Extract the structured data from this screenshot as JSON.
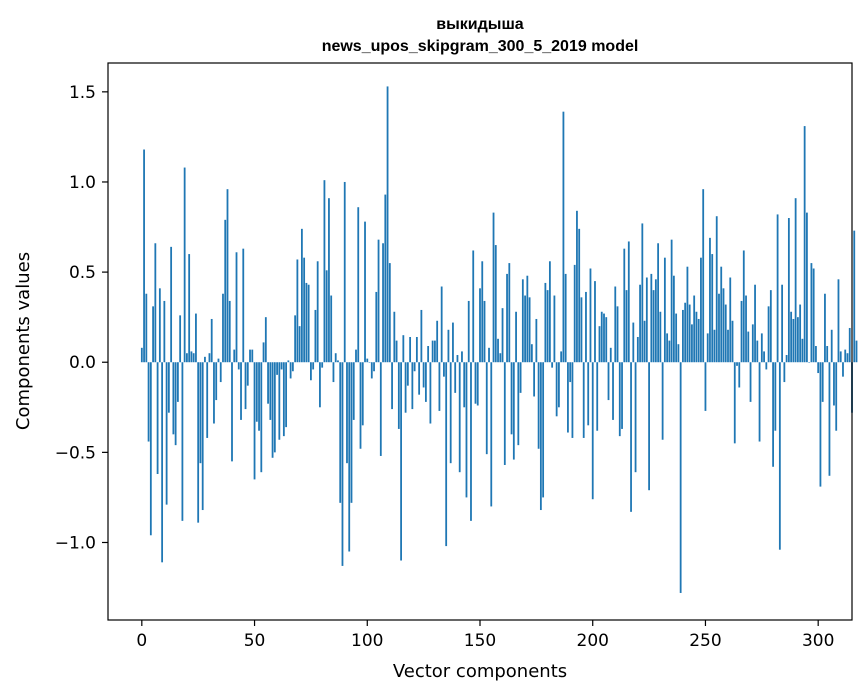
{
  "chart_data": {
    "type": "bar",
    "title": "выкидыша",
    "subtitle": "news_upos_skipgram_300_5_2019 model",
    "xlabel": "Vector components",
    "ylabel": "Components values",
    "xlim": [
      -15,
      315
    ],
    "ylim": [
      -1.43,
      1.66
    ],
    "xticks": [
      0,
      50,
      100,
      150,
      200,
      250,
      300
    ],
    "xtick_labels": [
      "0",
      "50",
      "100",
      "150",
      "200",
      "250",
      "300"
    ],
    "yticks": [
      -1.0,
      -0.5,
      0.0,
      0.5,
      1.0,
      1.5
    ],
    "ytick_labels": [
      "−1.0",
      "−0.5",
      "0.0",
      "0.5",
      "1.0",
      "1.5"
    ],
    "grid": false,
    "legend": "none",
    "bar_color": "#1f77b4",
    "values": [
      0.08,
      1.18,
      0.38,
      -0.44,
      -0.96,
      0.31,
      0.66,
      -0.62,
      0.41,
      -1.11,
      0.34,
      -0.79,
      -0.28,
      0.64,
      -0.4,
      -0.46,
      -0.22,
      0.26,
      -0.88,
      1.08,
      0.05,
      0.6,
      0.06,
      0.05,
      0.27,
      -0.89,
      -0.56,
      -0.82,
      0.03,
      -0.42,
      0.05,
      0.24,
      -0.34,
      -0.21,
      0.02,
      -0.11,
      0.38,
      0.79,
      0.96,
      0.34,
      -0.55,
      0.07,
      0.61,
      -0.04,
      -0.32,
      0.63,
      -0.26,
      -0.13,
      0.07,
      0.07,
      -0.65,
      -0.33,
      -0.38,
      -0.61,
      0.11,
      0.25,
      -0.23,
      -0.32,
      -0.53,
      -0.5,
      -0.07,
      -0.43,
      -0.04,
      -0.41,
      -0.36,
      0.01,
      -0.09,
      -0.05,
      0.26,
      0.57,
      0.2,
      0.74,
      0.58,
      0.44,
      0.43,
      -0.1,
      -0.04,
      0.29,
      0.56,
      -0.25,
      -0.03,
      1.01,
      0.51,
      0.91,
      0.37,
      -0.11,
      0.05,
      0.01,
      -0.78,
      -1.13,
      1.0,
      -0.56,
      -1.05,
      -0.78,
      -0.32,
      0.07,
      0.86,
      -0.48,
      -0.35,
      0.78,
      0.02,
      0.0,
      -0.09,
      -0.05,
      0.39,
      0.68,
      -0.52,
      0.66,
      0.93,
      1.53,
      0.55,
      -0.26,
      0.28,
      0.12,
      -0.37,
      -1.1,
      0.15,
      -0.28,
      -0.13,
      0.14,
      -0.26,
      -0.05,
      0.14,
      -0.18,
      0.29,
      -0.14,
      -0.22,
      0.09,
      -0.34,
      0.12,
      0.12,
      0.23,
      -0.27,
      0.42,
      -0.08,
      -1.02,
      0.18,
      -0.56,
      0.22,
      -0.17,
      0.04,
      -0.61,
      0.06,
      -0.25,
      -0.75,
      0.34,
      -0.88,
      0.62,
      -0.23,
      -0.24,
      0.41,
      0.56,
      0.34,
      -0.51,
      0.08,
      -0.8,
      0.83,
      0.65,
      0.13,
      0.05,
      0.3,
      -0.57,
      0.49,
      0.55,
      -0.4,
      -0.54,
      0.28,
      -0.46,
      -0.17,
      0.46,
      0.37,
      0.48,
      0.36,
      0.1,
      -0.19,
      0.24,
      -0.48,
      -0.82,
      -0.75,
      0.44,
      0.4,
      0.56,
      -0.03,
      0.37,
      -0.3,
      -0.25,
      0.06,
      1.39,
      0.49,
      -0.39,
      -0.11,
      -0.42,
      0.54,
      0.84,
      0.74,
      0.36,
      -0.42,
      0.39,
      -0.35,
      0.52,
      -0.76,
      0.45,
      -0.38,
      0.2,
      0.28,
      0.27,
      0.25,
      -0.21,
      0.08,
      -0.32,
      0.42,
      0.31,
      -0.41,
      -0.37,
      0.63,
      0.4,
      0.67,
      -0.83,
      0.22,
      -0.61,
      0.14,
      0.43,
      0.77,
      0.23,
      0.47,
      -0.71,
      0.49,
      0.4,
      0.46,
      0.66,
      0.28,
      -0.43,
      0.58,
      0.16,
      0.12,
      0.68,
      0.48,
      0.27,
      0.1,
      -1.28,
      0.29,
      0.33,
      0.53,
      0.32,
      0.21,
      0.37,
      0.28,
      0.24,
      0.58,
      0.96,
      -0.27,
      0.16,
      0.69,
      0.6,
      0.18,
      0.81,
      0.38,
      0.53,
      0.41,
      0.32,
      0.18,
      0.47,
      0.23,
      -0.45,
      -0.02,
      -0.14,
      0.34,
      0.62,
      0.37,
      0.17,
      -0.22,
      0.21,
      0.43,
      0.12,
      -0.44,
      0.16,
      0.06,
      -0.04,
      0.31,
      0.4,
      -0.58,
      -0.38,
      0.82,
      -1.04,
      0.43,
      -0.11,
      0.04,
      0.8,
      0.28,
      0.24,
      0.91,
      0.25,
      0.32,
      0.13,
      1.31,
      0.83,
      0.0,
      0.55,
      0.52,
      0.09,
      -0.06,
      -0.69,
      -0.22,
      0.38,
      0.09,
      -0.63,
      0.18,
      -0.24,
      -0.38,
      0.46,
      0.06,
      -0.08,
      0.07,
      0.05,
      0.19,
      -0.28,
      0.73,
      0.12
    ]
  }
}
